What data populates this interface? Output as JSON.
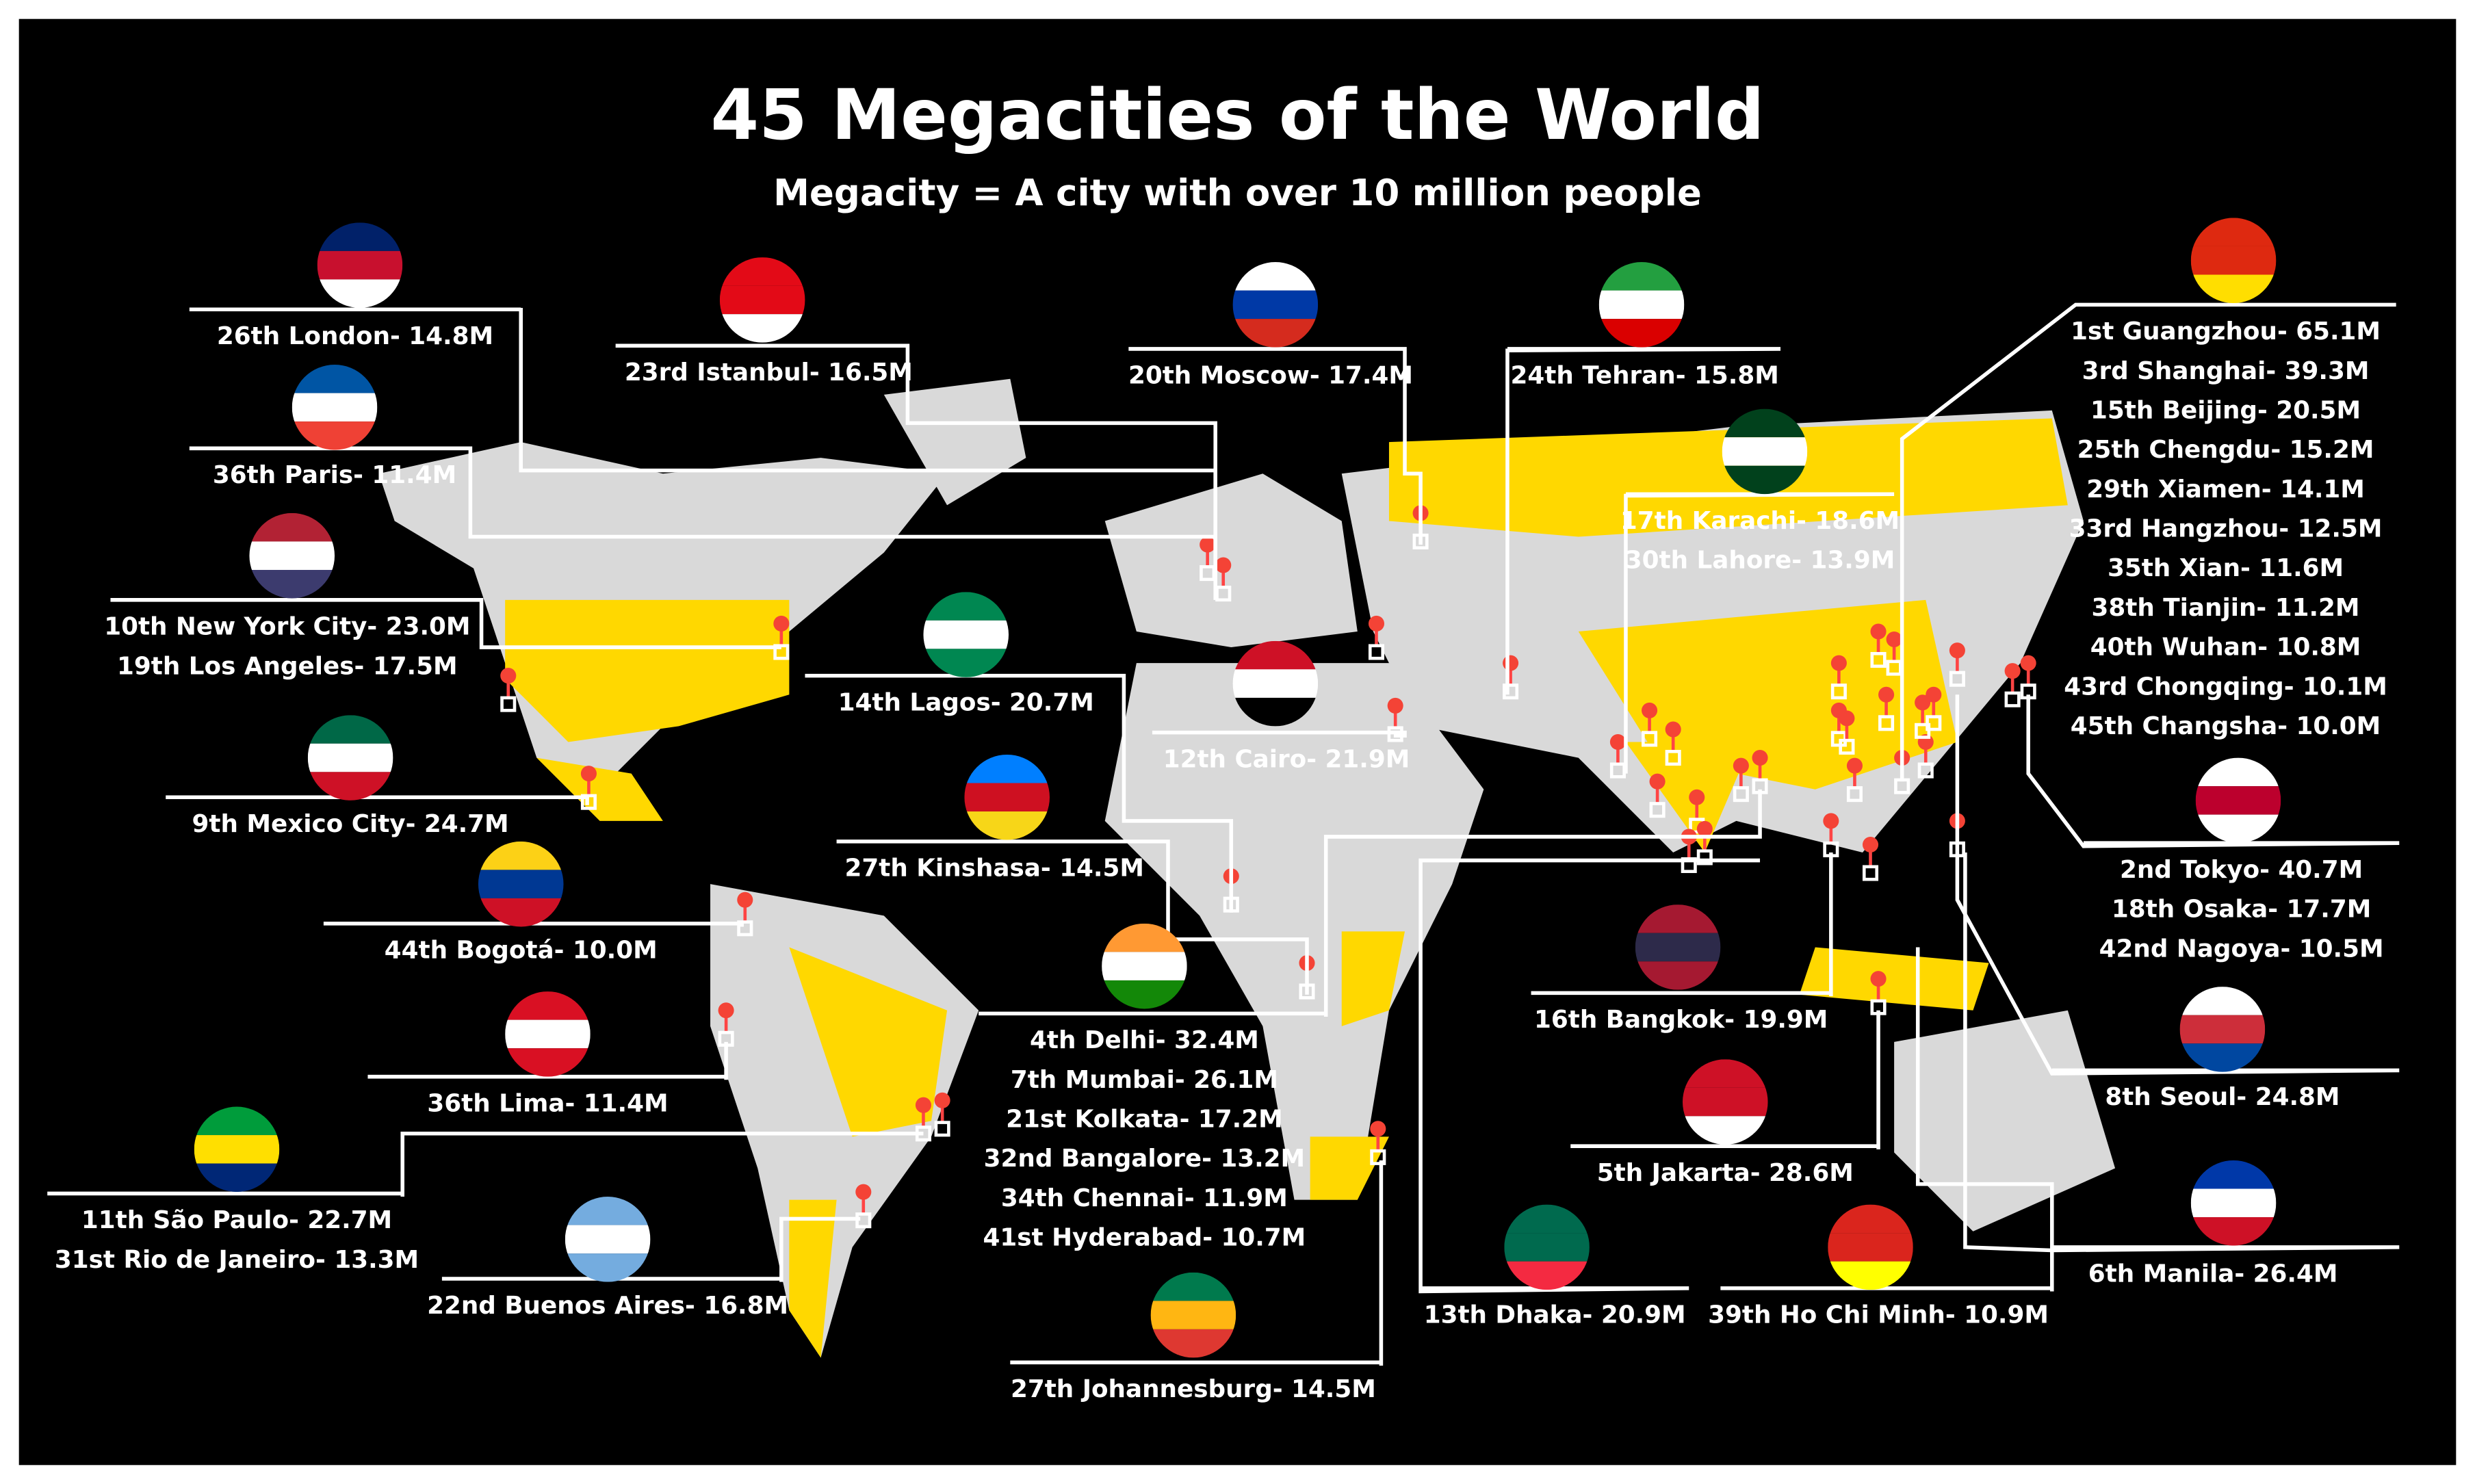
{
  "header": {
    "title": "45 Megacities of the World",
    "subtitle": "Megacity = A city with over 10 million people"
  },
  "callouts": [
    {
      "lines": [
        "26th London- 14.8M"
      ]
    },
    {
      "lines": [
        "23rd Istanbul- 16.5M"
      ]
    },
    {
      "lines": [
        "20th Moscow- 17.4M"
      ]
    },
    {
      "lines": [
        "24th Tehran- 15.8M"
      ]
    },
    {
      "lines": [
        "1st Guangzhou- 65.1M",
        "3rd Shanghai- 39.3M",
        "15th Beijing- 20.5M",
        "25th Chengdu- 15.2M",
        "29th Xiamen- 14.1M",
        "33rd Hangzhou- 12.5M",
        "35th Xian- 11.6M",
        "38th Tianjin- 11.2M",
        "40th Wuhan- 10.8M",
        "43rd Chongqing- 10.1M",
        "45th Changsha- 10.0M"
      ]
    },
    {
      "lines": [
        "36th Paris- 11.4M"
      ]
    },
    {
      "lines": [
        "17th Karachi- 18.6M",
        "30th Lahore- 13.9M"
      ]
    },
    {
      "lines": [
        "10th New York City- 23.0M",
        "19th Los Angeles- 17.5M"
      ]
    },
    {
      "lines": [
        "14th Lagos- 20.7M"
      ]
    },
    {
      "lines": [
        "12th Cairo- 21.9M"
      ]
    },
    {
      "lines": [
        "9th Mexico City- 24.7M"
      ]
    },
    {
      "lines": [
        "27th Kinshasa- 14.5M"
      ]
    },
    {
      "lines": [
        "2nd Tokyo- 40.7M",
        "18th Osaka- 17.7M",
        "42nd Nagoya- 10.5M"
      ]
    },
    {
      "lines": [
        "44th Bogotá- 10.0M"
      ]
    },
    {
      "lines": [
        "4th Delhi- 32.4M",
        "7th Mumbai- 26.1M",
        "21st Kolkata- 17.2M",
        "32nd Bangalore- 13.2M",
        "34th Chennai- 11.9M",
        "41st Hyderabad- 10.7M"
      ]
    },
    {
      "lines": [
        "16th Bangkok- 19.9M"
      ]
    },
    {
      "lines": [
        "36th Lima- 11.4M"
      ]
    },
    {
      "lines": [
        "8th Seoul- 24.8M"
      ]
    },
    {
      "lines": [
        "5th Jakarta- 28.6M"
      ]
    },
    {
      "lines": [
        "11th São Paulo- 22.7M",
        "31st Rio de Janeiro- 13.3M"
      ]
    },
    {
      "lines": [
        "6th Manila- 26.4M"
      ]
    },
    {
      "lines": [
        "22nd Buenos Aires- 16.8M"
      ]
    },
    {
      "lines": [
        "13th Dhaka- 20.9M"
      ]
    },
    {
      "lines": [
        "39th Ho Chi Minh- 10.9M"
      ]
    },
    {
      "lines": [
        "27th Johannesburg- 14.5M"
      ]
    }
  ]
}
